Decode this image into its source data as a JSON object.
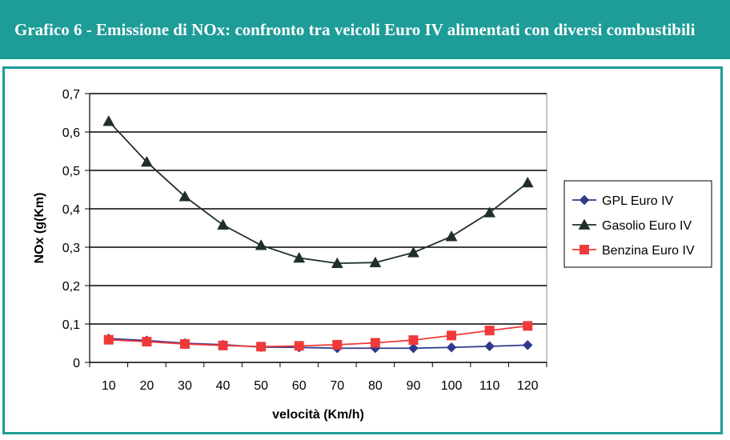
{
  "header": {
    "title": "Grafico 6 - Emissione di NOx: confronto tra veicoli Euro IV alimentati con diversi combustibili"
  },
  "colors": {
    "header_bg": "#1d9c98",
    "gpl": "#2e3a8c",
    "gasolio": "#1f2f2c",
    "benzina": "#f03a3a"
  },
  "chart_data": {
    "type": "line",
    "title": "",
    "xlabel": "velocità (Km/h)",
    "ylabel": "NOx (g(Km)",
    "x": [
      10,
      20,
      30,
      40,
      50,
      60,
      70,
      80,
      90,
      100,
      110,
      120
    ],
    "ylim": [
      0,
      0.7
    ],
    "yticks": [
      "0",
      "0,1",
      "0,2",
      "0,3",
      "0,4",
      "0,5",
      "0,6",
      "0,7"
    ],
    "grid": true,
    "legend_position": "right",
    "series": [
      {
        "name": "GPL Euro IV",
        "marker": "diamond",
        "color": "#2e3a8c",
        "values": [
          0.062,
          0.057,
          0.05,
          0.046,
          0.04,
          0.039,
          0.037,
          0.037,
          0.037,
          0.039,
          0.042,
          0.045
        ]
      },
      {
        "name": "Gasolio Euro IV",
        "marker": "triangle",
        "color": "#1f2f2c",
        "values": [
          0.628,
          0.522,
          0.432,
          0.358,
          0.305,
          0.272,
          0.258,
          0.26,
          0.286,
          0.328,
          0.39,
          0.468
        ]
      },
      {
        "name": "Benzina Euro IV",
        "marker": "square",
        "color": "#f03a3a",
        "values": [
          0.059,
          0.054,
          0.048,
          0.044,
          0.041,
          0.043,
          0.046,
          0.051,
          0.058,
          0.07,
          0.083,
          0.095
        ]
      }
    ]
  }
}
